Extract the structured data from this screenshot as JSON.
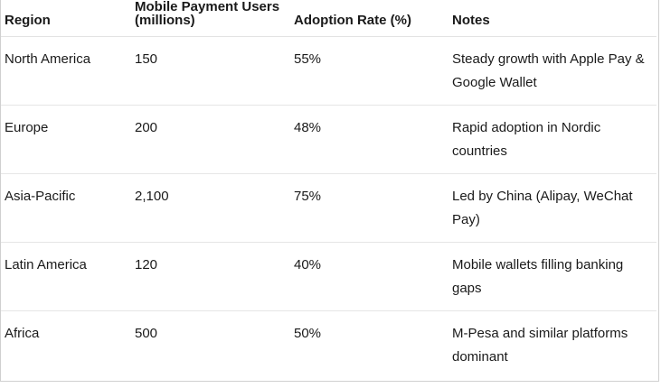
{
  "table": {
    "headers": [
      "Region",
      "Mobile Payment Users (millions)",
      "Adoption Rate (%)",
      "Notes"
    ],
    "rows": [
      {
        "region": "North America",
        "users": "150",
        "rate": "55%",
        "notes": "Steady growth with Apple Pay & Google Wallet"
      },
      {
        "region": "Europe",
        "users": "200",
        "rate": "48%",
        "notes": "Rapid adoption in Nordic countries"
      },
      {
        "region": "Asia-Pacific",
        "users": "2,100",
        "rate": "75%",
        "notes": "Led by China (Alipay, WeChat Pay)"
      },
      {
        "region": "Latin America",
        "users": "120",
        "rate": "40%",
        "notes": "Mobile wallets filling banking gaps"
      },
      {
        "region": "Africa",
        "users": "500",
        "rate": "50%",
        "notes": "M-Pesa and similar platforms dominant"
      }
    ]
  }
}
